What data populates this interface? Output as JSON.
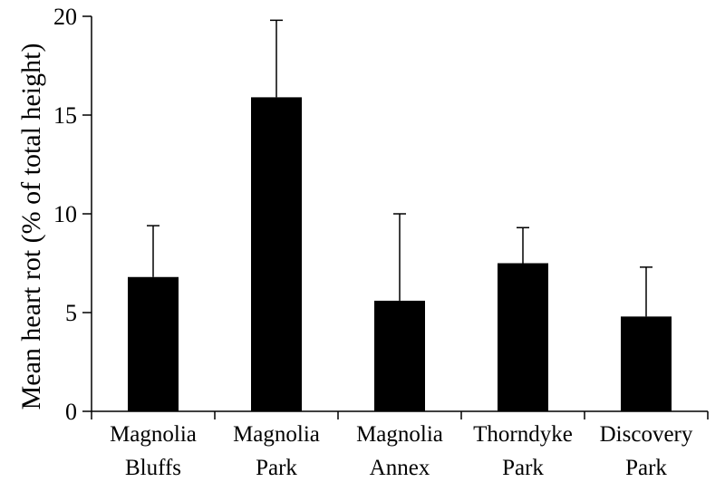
{
  "chart_data": {
    "type": "bar",
    "title": "",
    "xlabel": "",
    "ylabel": "Mean heart rot (% of total height)",
    "ylim": [
      0,
      20
    ],
    "yticks": [
      0,
      5,
      10,
      15,
      20
    ],
    "grid": false,
    "categories": [
      [
        "Magnolia",
        "Bluffs"
      ],
      [
        "Magnolia",
        "Park"
      ],
      [
        "Magnolia",
        "Annex"
      ],
      [
        "Thorndyke",
        "Park"
      ],
      [
        "Discovery",
        "Park"
      ]
    ],
    "values": [
      6.8,
      15.9,
      5.6,
      7.5,
      4.8
    ],
    "error_upper": [
      2.6,
      3.9,
      4.4,
      1.8,
      2.5
    ],
    "colors": {
      "bar": "#000000",
      "axis": "#000000"
    }
  }
}
